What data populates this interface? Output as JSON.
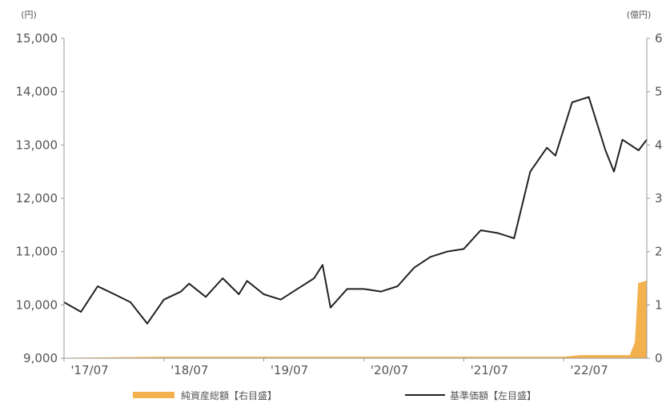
{
  "chart_data": {
    "type": "line",
    "title": "",
    "y_left_unit": "(円)",
    "y_right_unit": "(億円)",
    "y_left_range": [
      9000,
      15000
    ],
    "y_right_range": [
      0,
      6
    ],
    "y_left_ticks": [
      "15,000",
      "14,000",
      "13,000",
      "12,000",
      "11,000",
      "10,000",
      "9,000"
    ],
    "y_right_ticks": [
      "6",
      "5",
      "4",
      "3",
      "2",
      "1",
      "0"
    ],
    "x_ticks": [
      "'17/07",
      "'18/07",
      "'19/07",
      "'20/07",
      "'21/07",
      "'22/07"
    ],
    "x_range": [
      "2017-07",
      "2023-05"
    ],
    "legend_position": "bottom",
    "grid": false,
    "series": [
      {
        "name": "純資産総額【右目盛】",
        "axis": "right",
        "type": "area",
        "color": "#f2b14c",
        "x": [
          "2017-07",
          "2018-07",
          "2019-07",
          "2020-07",
          "2021-07",
          "2022-07",
          "2022-09",
          "2023-03",
          "2023-03-20",
          "2023-04",
          "2023-05"
        ],
        "values": [
          0,
          0.02,
          0.02,
          0.02,
          0.02,
          0.02,
          0.05,
          0.05,
          0.3,
          1.4,
          1.45
        ]
      },
      {
        "name": "基準価額【左目盛】",
        "axis": "left",
        "type": "line",
        "color": "#222222",
        "x": [
          "2017-07",
          "2017-09",
          "2017-11",
          "2018-01",
          "2018-03",
          "2018-05",
          "2018-07",
          "2018-09",
          "2018-10",
          "2018-12",
          "2019-02",
          "2019-04",
          "2019-05",
          "2019-07",
          "2019-09",
          "2019-11",
          "2020-01",
          "2020-02",
          "2020-03",
          "2020-05",
          "2020-07",
          "2020-09",
          "2020-11",
          "2021-01",
          "2021-03",
          "2021-05",
          "2021-07",
          "2021-09",
          "2021-11",
          "2022-01",
          "2022-03",
          "2022-05",
          "2022-06",
          "2022-08",
          "2022-10",
          "2022-12",
          "2023-01",
          "2023-02",
          "2023-04",
          "2023-05"
        ],
        "values": [
          10050,
          9870,
          10350,
          10200,
          10050,
          9650,
          10100,
          10250,
          10400,
          10150,
          10500,
          10200,
          10450,
          10200,
          10100,
          10300,
          10500,
          10750,
          9950,
          10300,
          10300,
          10250,
          10350,
          10700,
          10900,
          11000,
          11050,
          11400,
          11350,
          11250,
          12500,
          12950,
          12800,
          13800,
          13900,
          12900,
          12500,
          13100,
          12900,
          13100
        ]
      }
    ]
  }
}
